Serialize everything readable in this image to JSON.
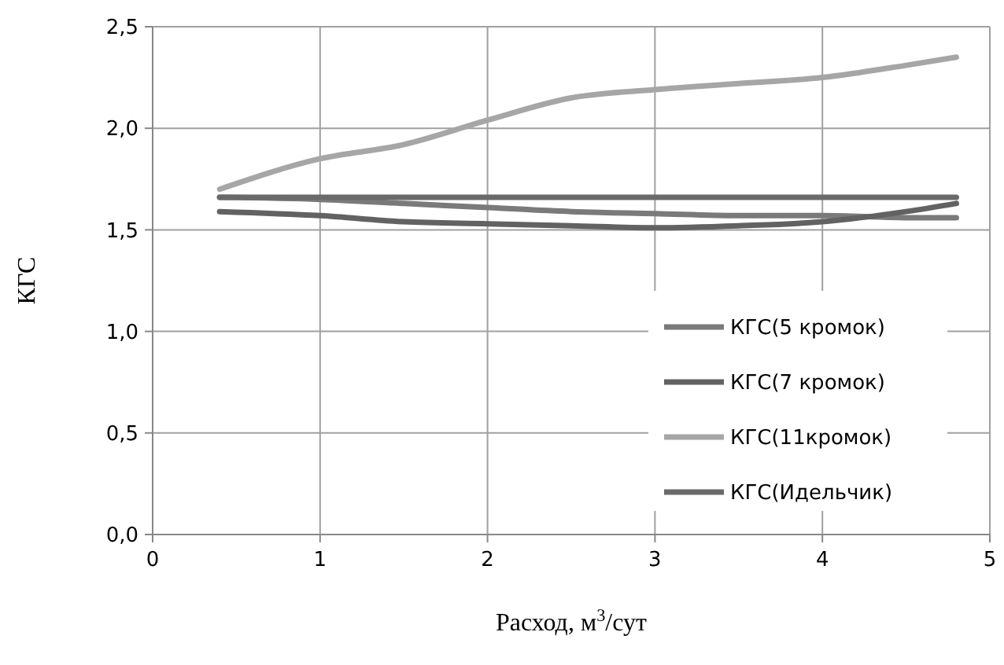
{
  "chart_data": {
    "type": "line",
    "xlabel": "Расход, м$^{3}$/сут",
    "ylabel": "КГС",
    "x": [
      0.4,
      1,
      1.5,
      2,
      2.5,
      3,
      3.5,
      4,
      4.5,
      4.8
    ],
    "series": [
      {
        "name": "КГС(5 кромок)",
        "color": "#7a7a7a",
        "values": [
          1.66,
          1.65,
          1.63,
          1.61,
          1.59,
          1.58,
          1.57,
          1.57,
          1.56,
          1.56
        ]
      },
      {
        "name": "КГС(7 кромок)",
        "color": "#626262",
        "values": [
          1.59,
          1.57,
          1.54,
          1.53,
          1.52,
          1.51,
          1.52,
          1.54,
          1.59,
          1.63
        ]
      },
      {
        "name": "КГС(11кромок)",
        "color": "#a6a6a6",
        "values": [
          1.7,
          1.85,
          1.92,
          2.04,
          2.15,
          2.19,
          2.22,
          2.25,
          2.31,
          2.35
        ]
      },
      {
        "name": "КГС(Идельчик)",
        "color": "#6a6a6a",
        "values": [
          1.66,
          1.66,
          1.66,
          1.66,
          1.66,
          1.66,
          1.66,
          1.66,
          1.66,
          1.66
        ]
      }
    ],
    "xlim": [
      0,
      5
    ],
    "xticks": [
      0,
      1,
      2,
      3,
      4,
      5
    ],
    "ylim": [
      0,
      2.5
    ],
    "yticks": [
      {
        "value": 0,
        "label": "0,0"
      },
      {
        "value": 0.5,
        "label": "0,5"
      },
      {
        "value": 1,
        "label": "1,0"
      },
      {
        "value": 1.5,
        "label": "1,5"
      },
      {
        "value": 2,
        "label": "2,0"
      },
      {
        "value": 2.5,
        "label": "2,5"
      }
    ],
    "grid": true,
    "legend": "right",
    "marker": "none",
    "line_style": "solid"
  }
}
